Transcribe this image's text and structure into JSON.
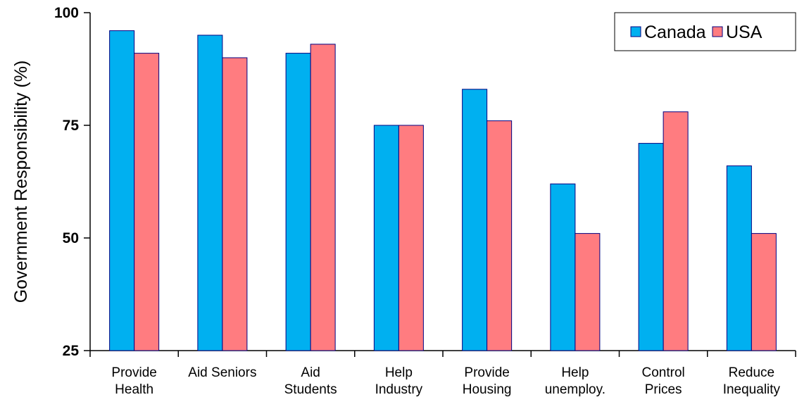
{
  "chart_data": {
    "type": "bar",
    "title": "",
    "xlabel": "",
    "ylabel": "Government Responsibility (%)",
    "ylim": [
      25,
      100
    ],
    "yticks": [
      "25",
      "50",
      "75",
      "100"
    ],
    "categories": [
      [
        "Provide",
        "Health"
      ],
      [
        "Aid Seniors"
      ],
      [
        "Aid",
        "Students"
      ],
      [
        "Help",
        "Industry"
      ],
      [
        "Provide",
        "Housing"
      ],
      [
        "Help",
        "unemploy."
      ],
      [
        "Control",
        "Prices"
      ],
      [
        "Reduce",
        "Inequality"
      ]
    ],
    "series": [
      {
        "name": "Canada",
        "color": "#00B0F0",
        "values": [
          96,
          95,
          91,
          75,
          83,
          62,
          71,
          66
        ]
      },
      {
        "name": "USA",
        "color": "#FF7C80",
        "values": [
          91,
          90,
          93,
          75,
          76,
          51,
          78,
          51
        ]
      }
    ],
    "grid": false,
    "legend": {
      "position": "top-right"
    },
    "bar_outline_color": "#000080"
  }
}
